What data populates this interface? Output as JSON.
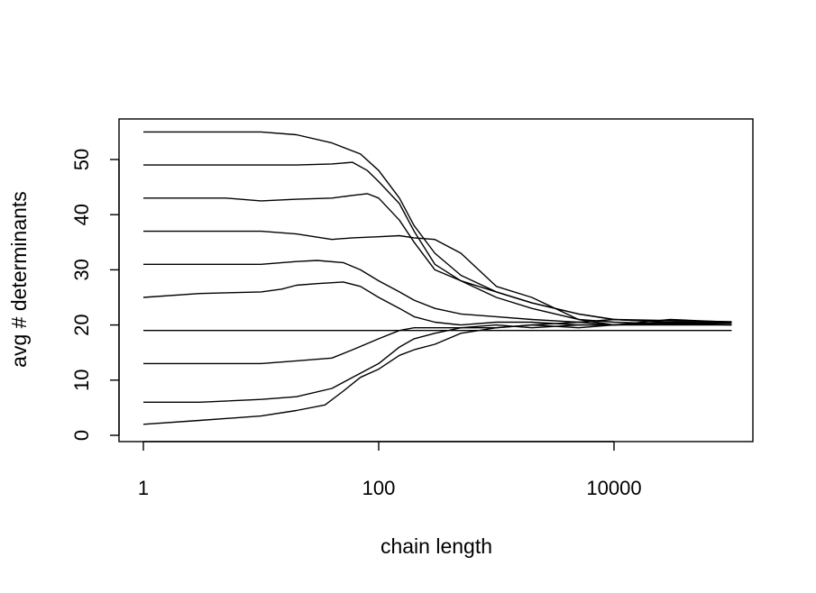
{
  "chart_data": {
    "type": "line",
    "title": "",
    "xlabel": "chain length",
    "ylabel": "avg # determinants",
    "x_scale": "log10",
    "xlim": [
      1,
      100000
    ],
    "ylim": [
      0,
      55
    ],
    "x_ticks": [
      {
        "value": 1,
        "label": "1"
      },
      {
        "value": 100,
        "label": "100"
      },
      {
        "value": 10000,
        "label": "10000"
      }
    ],
    "y_ticks": [
      {
        "value": 0,
        "label": "0"
      },
      {
        "value": 10,
        "label": "10"
      },
      {
        "value": 20,
        "label": "20"
      },
      {
        "value": 30,
        "label": "30"
      },
      {
        "value": 40,
        "label": "40"
      },
      {
        "value": 50,
        "label": "50"
      }
    ],
    "grid": false,
    "legend": "none",
    "line_color": "#000000",
    "series": [
      {
        "x": [
          1,
          10,
          20,
          40,
          70,
          100,
          150,
          200,
          300,
          500,
          1000,
          2000,
          5000,
          10000,
          30000,
          100000
        ],
        "y": [
          55,
          55,
          54.5,
          53,
          51,
          48,
          43,
          38,
          33,
          29,
          26,
          24,
          22,
          21,
          20.8,
          20.6
        ]
      },
      {
        "x": [
          1,
          10,
          20,
          40,
          60,
          80,
          100,
          150,
          200,
          300,
          500,
          1000,
          2000,
          5000,
          10000,
          30000,
          100000
        ],
        "y": [
          49,
          49,
          49,
          49.2,
          49.5,
          48,
          46,
          42,
          37,
          31,
          28,
          26,
          24,
          22,
          21,
          20.5,
          20.3
        ]
      },
      {
        "x": [
          1,
          5,
          10,
          20,
          40,
          60,
          80,
          100,
          150,
          200,
          300,
          500,
          1000,
          2000,
          5000,
          10000,
          30000,
          100000
        ],
        "y": [
          43,
          43,
          42.5,
          42.8,
          43,
          43.5,
          43.8,
          43,
          39,
          35,
          30,
          28,
          25,
          23,
          21,
          20.5,
          20.2,
          20
        ]
      },
      {
        "x": [
          1,
          10,
          20,
          40,
          60,
          100,
          150,
          200,
          300,
          500,
          1000,
          2000,
          5000,
          10000,
          30000,
          100000
        ],
        "y": [
          37,
          37,
          36.5,
          35.5,
          35.8,
          36,
          36.2,
          35.8,
          35.5,
          33,
          27,
          25,
          21,
          20,
          21,
          20.5
        ]
      },
      {
        "x": [
          1,
          10,
          20,
          30,
          50,
          70,
          100,
          150,
          200,
          300,
          500,
          1000,
          2000,
          5000,
          10000,
          30000,
          100000
        ],
        "y": [
          31,
          31,
          31.5,
          31.7,
          31.3,
          30,
          28,
          26,
          24.5,
          23,
          22,
          21.5,
          21,
          20.5,
          20,
          20.5,
          20.5
        ]
      },
      {
        "x": [
          1,
          3,
          10,
          15,
          20,
          30,
          50,
          70,
          100,
          150,
          200,
          300,
          500,
          1000,
          2000,
          5000,
          10000,
          30000,
          100000
        ],
        "y": [
          25,
          25.7,
          26,
          26.5,
          27.2,
          27.5,
          27.8,
          27,
          25,
          23,
          21.5,
          20.5,
          20,
          20.5,
          20.5,
          20,
          20,
          20.5,
          20.5
        ]
      },
      {
        "x": [
          1,
          10,
          100,
          1000,
          5000,
          10000,
          30000,
          100000
        ],
        "y": [
          19,
          19,
          19,
          19,
          19,
          19,
          19,
          19
        ]
      },
      {
        "x": [
          1,
          10,
          20,
          40,
          60,
          100,
          150,
          200,
          300,
          500,
          1000,
          2000,
          5000,
          10000,
          30000,
          100000
        ],
        "y": [
          13,
          13,
          13.5,
          14,
          15.5,
          17.5,
          19,
          19.5,
          19.5,
          19.5,
          19.5,
          20,
          20.5,
          21,
          20.5,
          20.5
        ]
      },
      {
        "x": [
          1,
          3,
          10,
          20,
          40,
          60,
          100,
          150,
          200,
          300,
          500,
          1000,
          2000,
          5000,
          10000,
          30000,
          100000
        ],
        "y": [
          6,
          6,
          6.5,
          7,
          8.5,
          10.5,
          13,
          16,
          17.5,
          18.5,
          19.5,
          20,
          19.5,
          20,
          20,
          20,
          20
        ]
      },
      {
        "x": [
          1,
          3,
          10,
          20,
          35,
          50,
          70,
          100,
          150,
          200,
          300,
          500,
          1000,
          2000,
          5000,
          10000,
          30000,
          100000
        ],
        "y": [
          2,
          2.7,
          3.5,
          4.5,
          5.5,
          8,
          10.5,
          12,
          14.5,
          15.5,
          16.5,
          18.5,
          19.5,
          20,
          19.5,
          20,
          20.3,
          20.3
        ]
      }
    ]
  }
}
